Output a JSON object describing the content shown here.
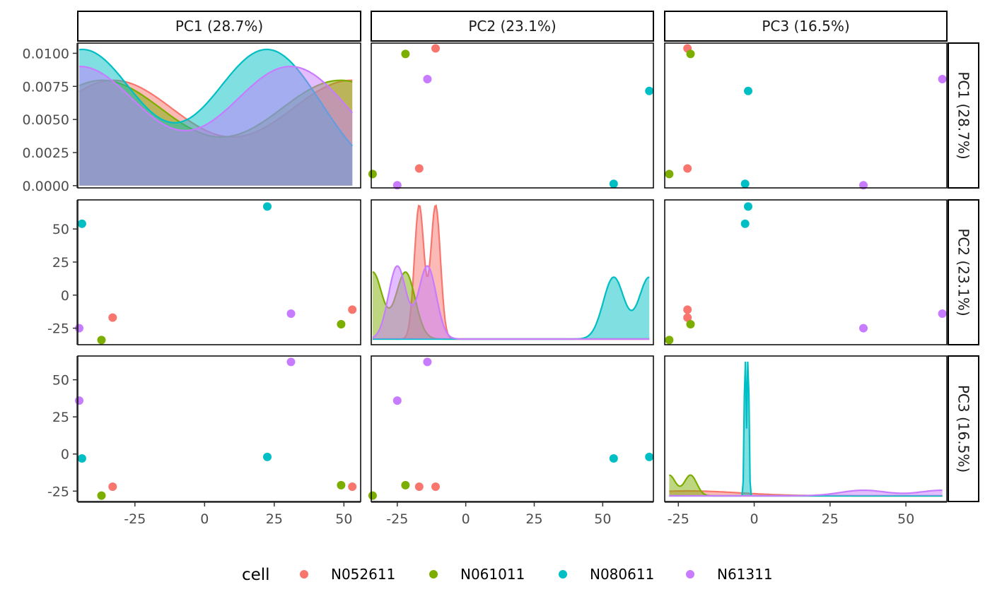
{
  "chart_data": {
    "type": "scatter",
    "variables": [
      "PC1 (28.7%)",
      "PC2 (23.1%)",
      "PC3 (16.5%)"
    ],
    "legend": {
      "title": "cell",
      "position": "bottom"
    },
    "series": [
      {
        "name": "N052611",
        "color": "#F8766D",
        "points": [
          [
            -33,
            -17,
            -22
          ],
          [
            53,
            -11,
            -22
          ]
        ]
      },
      {
        "name": "N061011",
        "color": "#7CAE00",
        "points": [
          [
            -37,
            -34,
            -28
          ],
          [
            49,
            -22,
            -21
          ]
        ]
      },
      {
        "name": "N080611",
        "color": "#00BFC4",
        "points": [
          [
            -44,
            54,
            -3
          ],
          [
            22.5,
            67,
            -2
          ]
        ]
      },
      {
        "name": "N61311",
        "color": "#C77CFF",
        "points": [
          [
            -45,
            -25,
            36
          ],
          [
            31,
            -14,
            62
          ]
        ]
      }
    ],
    "axes": {
      "x": [
        {
          "range": [
            -45.5,
            56
          ],
          "ticks": [
            "-25",
            "0",
            "25",
            "50"
          ],
          "tick_values": [
            -25,
            0,
            25,
            50
          ]
        },
        {
          "range": [
            -34.5,
            68.5
          ],
          "ticks": [
            "-25",
            "0",
            "25",
            "50"
          ],
          "tick_values": [
            -25,
            0,
            25,
            50
          ]
        },
        {
          "range": [
            -29.5,
            63.5
          ],
          "ticks": [
            "-25",
            "0",
            "25",
            "50"
          ],
          "tick_values": [
            -25,
            0,
            25,
            50
          ]
        }
      ],
      "y": [
        {
          "range": [
            -0.00017,
            0.01077
          ],
          "ticks": [
            "0.0000",
            "0.0025",
            "0.0050",
            "0.0075",
            "0.0100"
          ],
          "tick_values": [
            0,
            0.0025,
            0.005,
            0.0075,
            0.01
          ],
          "note": "density"
        },
        {
          "range": [
            -37.5,
            72
          ],
          "ticks": [
            "-25",
            "0",
            "25",
            "50"
          ],
          "tick_values": [
            -25,
            0,
            25,
            50
          ]
        },
        {
          "range": [
            -32,
            66
          ],
          "ticks": [
            "-25",
            "0",
            "25",
            "50"
          ],
          "tick_values": [
            -25,
            0,
            25,
            50
          ]
        }
      ]
    },
    "diagonal": "density",
    "grid": false
  }
}
